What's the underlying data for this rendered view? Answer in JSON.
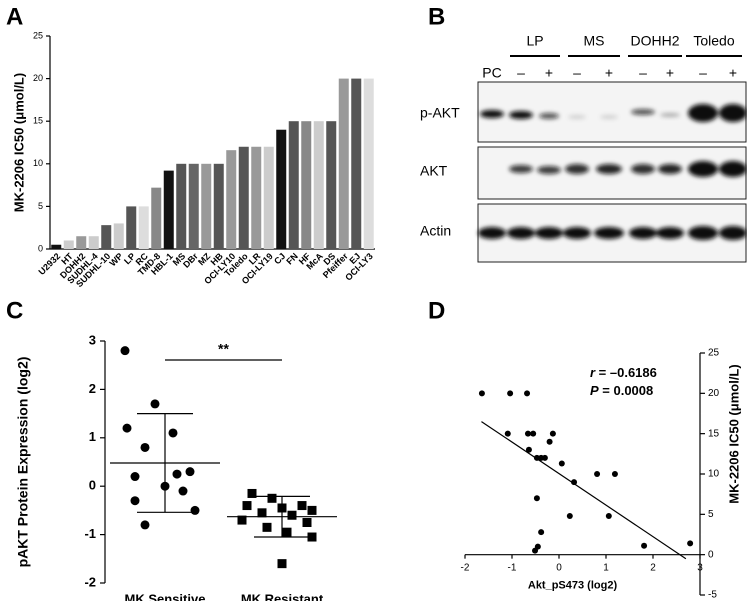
{
  "chart_data": [
    {
      "type": "bar",
      "panel": "A",
      "y_label": "MK-2206 IC50 (μmol/L)",
      "categories": [
        "U2932",
        "HT",
        "DOHH2",
        "SUDHL-4",
        "SUDHL-10",
        "WP",
        "LP",
        "RC",
        "TMD-8",
        "HBL-1",
        "MS",
        "DBr",
        "MZ",
        "HB",
        "OCI-LY10",
        "Toledo",
        "LR",
        "OCI-LY19",
        "CJ",
        "FN",
        "HF",
        "McA",
        "DS",
        "Pfeiffer",
        "EJ",
        "OCI-LY3"
      ],
      "values": [
        0.5,
        1,
        1.5,
        1.5,
        2.8,
        3,
        5,
        5,
        7.2,
        9.2,
        10,
        10,
        10,
        10,
        11.6,
        12,
        12,
        12,
        14,
        15,
        15,
        15,
        15,
        20,
        20,
        20
      ],
      "colors": [
        "#111",
        "#ccc",
        "#999",
        "#ccc",
        "#555",
        "#ccc",
        "#555",
        "#ddd",
        "#888",
        "#111",
        "#555",
        "#666",
        "#999",
        "#555",
        "#999",
        "#555",
        "#999",
        "#ccc",
        "#111",
        "#555",
        "#888",
        "#ccc",
        "#555",
        "#999",
        "#555",
        "#ddd"
      ],
      "ylim": [
        0,
        25
      ],
      "yticks": [
        0,
        5,
        10,
        15,
        20,
        25
      ]
    },
    {
      "type": "dot",
      "panel": "C",
      "y_label": "pAKT Protein Expression (log2)",
      "categories": [
        "MK Sensitive",
        "MK Resistant"
      ],
      "groups": [
        [
          2.8,
          1.7,
          1.2,
          1.1,
          0.8,
          0.3,
          0.25,
          0.2,
          0.0,
          -0.1,
          -0.3,
          -0.5,
          -0.8
        ],
        [
          -0.15,
          -0.25,
          -0.4,
          -0.4,
          -0.45,
          -0.5,
          -0.55,
          -0.6,
          -0.7,
          -0.75,
          -0.85,
          -0.95,
          -1.05,
          -1.6
        ]
      ],
      "markers": [
        "circle",
        "square"
      ],
      "means": [
        0.48,
        -0.63
      ],
      "sds": [
        1.02,
        0.42
      ],
      "annotation": "**",
      "ylim": [
        -2,
        3
      ],
      "yticks": [
        -2,
        -1,
        0,
        1,
        2,
        3
      ]
    },
    {
      "type": "scatter",
      "panel": "D",
      "x_label": "Akt_pS473 (log2)",
      "y_label": "MK-2206 IC50 (μmol/L)",
      "x": [
        -1.64,
        -1.04,
        -0.68,
        -1.09,
        -0.66,
        -0.55,
        -0.13,
        -0.47,
        -0.38,
        -0.3,
        -0.2,
        -0.64,
        0.06,
        0.32,
        0.81,
        1.19,
        -0.47,
        0.23,
        1.06,
        -0.38,
        -0.45,
        1.81,
        2.79,
        -0.51
      ],
      "y": [
        20,
        20,
        20,
        15,
        15,
        15,
        15,
        12,
        12,
        12,
        14,
        13,
        11.3,
        9,
        10,
        10,
        7,
        4.8,
        4.8,
        2.8,
        1,
        1.1,
        1.4,
        0.5
      ],
      "fit": {
        "x": [
          -1.65,
          2.7
        ],
        "y": [
          16.5,
          -0.5
        ]
      },
      "stats": [
        {
          "symbol": "r",
          "text": " = –0.6186"
        },
        {
          "symbol": "P",
          "text": " = 0.0008"
        }
      ],
      "xlim": [
        -2,
        3
      ],
      "xticks": [
        -2,
        -1,
        0,
        1,
        2,
        3
      ],
      "ylim": [
        -5,
        25
      ],
      "yticks": [
        -5,
        0,
        5,
        10,
        15,
        20,
        25
      ],
      "y_axis": "right"
    }
  ],
  "blot": {
    "panel": "B",
    "groups": [
      "LP",
      "MS",
      "DOHH2",
      "Toledo"
    ],
    "lanes": [
      "PC",
      "–",
      "+",
      "–",
      "+",
      "–",
      "+",
      "–",
      "+"
    ],
    "rows": [
      "p-AKT",
      "AKT",
      "Actin"
    ]
  }
}
